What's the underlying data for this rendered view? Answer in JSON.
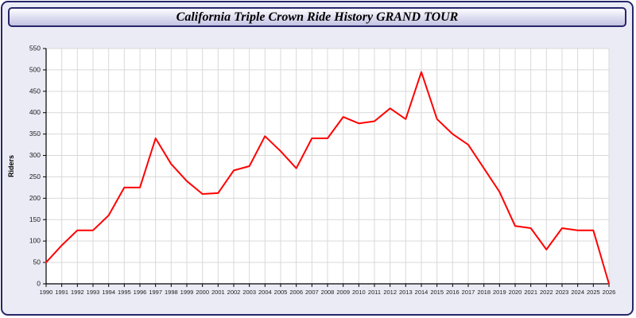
{
  "window": {
    "title": "California Triple Crown Ride History GRAND TOUR"
  },
  "chart_data": {
    "type": "line",
    "title": "California Triple Crown Ride History GRAND TOUR",
    "xlabel": "",
    "ylabel": "Riders",
    "x": [
      1990,
      1991,
      1992,
      1993,
      1994,
      1995,
      1996,
      1997,
      1998,
      1999,
      2000,
      2001,
      2002,
      2003,
      2004,
      2005,
      2006,
      2007,
      2008,
      2009,
      2010,
      2011,
      2012,
      2013,
      2014,
      2015,
      2016,
      2017,
      2018,
      2019,
      2020,
      2021,
      2022,
      2023,
      2024,
      2025,
      2026
    ],
    "series": [
      {
        "name": "Riders",
        "color": "#ff0000",
        "values": [
          50,
          90,
          125,
          125,
          160,
          225,
          225,
          340,
          280,
          240,
          210,
          212,
          265,
          275,
          345,
          310,
          270,
          340,
          340,
          390,
          375,
          380,
          410,
          385,
          495,
          385,
          350,
          325,
          270,
          215,
          135,
          130,
          80,
          130,
          125,
          125,
          0
        ]
      }
    ],
    "ylim": [
      0,
      550
    ],
    "ytick_step": 50,
    "grid": true,
    "legend": "none",
    "plot_bg": "#ffffff",
    "grid_color": "#d9d9d9",
    "axis_color": "#000000",
    "tick_label_color": "#1a1a1a",
    "page_bg": "#ebebf6",
    "frame_border": "#26266b"
  }
}
